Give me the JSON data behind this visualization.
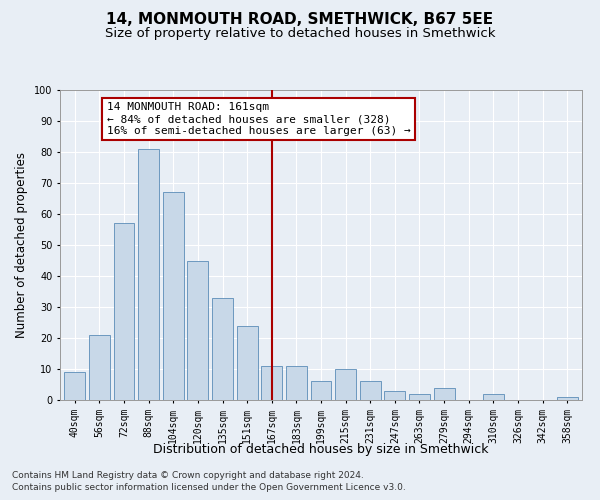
{
  "title": "14, MONMOUTH ROAD, SMETHWICK, B67 5EE",
  "subtitle": "Size of property relative to detached houses in Smethwick",
  "xlabel": "Distribution of detached houses by size in Smethwick",
  "ylabel": "Number of detached properties",
  "categories": [
    "40sqm",
    "56sqm",
    "72sqm",
    "88sqm",
    "104sqm",
    "120sqm",
    "135sqm",
    "151sqm",
    "167sqm",
    "183sqm",
    "199sqm",
    "215sqm",
    "231sqm",
    "247sqm",
    "263sqm",
    "279sqm",
    "294sqm",
    "310sqm",
    "326sqm",
    "342sqm",
    "358sqm"
  ],
  "values": [
    9,
    21,
    57,
    81,
    67,
    45,
    33,
    24,
    11,
    11,
    6,
    10,
    6,
    3,
    2,
    4,
    0,
    2,
    0,
    0,
    1
  ],
  "bar_color": "#c8d8e8",
  "bar_edge_color": "#5b8db8",
  "vline_color": "#aa0000",
  "annotation_text": "14 MONMOUTH ROAD: 161sqm\n← 84% of detached houses are smaller (328)\n16% of semi-detached houses are larger (63) →",
  "annotation_box_color": "#ffffff",
  "annotation_box_edge_color": "#aa0000",
  "ylim": [
    0,
    100
  ],
  "yticks": [
    0,
    10,
    20,
    30,
    40,
    50,
    60,
    70,
    80,
    90,
    100
  ],
  "footer_line1": "Contains HM Land Registry data © Crown copyright and database right 2024.",
  "footer_line2": "Contains public sector information licensed under the Open Government Licence v3.0.",
  "background_color": "#e8eef5",
  "grid_color": "#ffffff",
  "title_fontsize": 11,
  "subtitle_fontsize": 9.5,
  "ylabel_fontsize": 8.5,
  "xlabel_fontsize": 9,
  "tick_fontsize": 7,
  "footer_fontsize": 6.5,
  "annotation_fontsize": 8
}
